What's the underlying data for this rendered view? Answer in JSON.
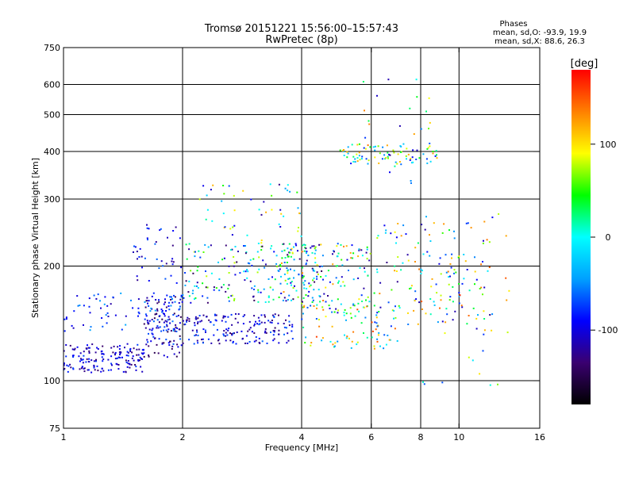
{
  "chart_data": {
    "type": "scatter",
    "title": "Tromsø 20151221 15:56:00–15:57:43",
    "subtitle": "RwPretec (8p)",
    "xlabel": "Frequency [MHz]",
    "ylabel": "Stationary phase Virtual Height [km]",
    "xscale": "log",
    "yscale": "log",
    "xlim": [
      1,
      16
    ],
    "ylim": [
      75,
      750
    ],
    "xticks": [
      1,
      2,
      4,
      6,
      8,
      10,
      16
    ],
    "yticks": [
      75,
      100,
      200,
      300,
      400,
      500,
      600,
      750
    ],
    "xgrid": [
      2,
      4,
      6,
      8,
      10
    ],
    "ygrid": [
      100,
      200,
      300,
      400,
      500,
      600
    ],
    "grid": true,
    "phase_info": {
      "title": "Phases",
      "line1": "mean, sd,O: -93.9, 19.9",
      "line2": "mean, sd,X: 88.6, 26.3"
    },
    "colorbar": {
      "label": "[deg]",
      "ticks": [
        100,
        0,
        -100
      ],
      "range": [
        -180,
        180
      ],
      "colors": [
        "#000000",
        "#3a0070",
        "#0000ff",
        "#00a0ff",
        "#00ffff",
        "#00ff00",
        "#ffff00",
        "#ff8000",
        "#ff0000"
      ]
    },
    "clusters": [
      {
        "f": [
          1.0,
          1.6
        ],
        "h": [
          105,
          125
        ],
        "n": 160,
        "phase": [
          -140,
          -70
        ]
      },
      {
        "f": [
          1.0,
          2.0
        ],
        "h": [
          135,
          170
        ],
        "n": 80,
        "phase": [
          -120,
          -40
        ]
      },
      {
        "f": [
          1.6,
          2.0
        ],
        "h": [
          115,
          170
        ],
        "n": 120,
        "phase": [
          -150,
          -60
        ]
      },
      {
        "f": [
          1.5,
          2.0
        ],
        "h": [
          180,
          260
        ],
        "n": 40,
        "phase": [
          -130,
          -60
        ]
      },
      {
        "f": [
          2.0,
          3.8
        ],
        "h": [
          125,
          150
        ],
        "n": 170,
        "phase": [
          -140,
          -60
        ]
      },
      {
        "f": [
          2.0,
          4.5
        ],
        "h": [
          160,
          230
        ],
        "n": 200,
        "phase": [
          -150,
          80
        ]
      },
      {
        "f": [
          2.2,
          4.0
        ],
        "h": [
          230,
          330
        ],
        "n": 50,
        "phase": [
          -130,
          120
        ]
      },
      {
        "f": [
          3.5,
          6.0
        ],
        "h": [
          150,
          230
        ],
        "n": 150,
        "phase": [
          -130,
          140
        ]
      },
      {
        "f": [
          4.0,
          7.0
        ],
        "h": [
          120,
          160
        ],
        "n": 80,
        "phase": [
          -80,
          160
        ]
      },
      {
        "f": [
          5.0,
          9.0
        ],
        "h": [
          370,
          420
        ],
        "n": 80,
        "phase": [
          -110,
          130
        ]
      },
      {
        "f": [
          5.5,
          8.5
        ],
        "h": [
          330,
          620
        ],
        "n": 30,
        "phase": [
          -130,
          140
        ]
      },
      {
        "f": [
          6.0,
          12.0
        ],
        "h": [
          140,
          260
        ],
        "n": 140,
        "phase": [
          -130,
          150
        ]
      },
      {
        "f": [
          8.0,
          13.5
        ],
        "h": [
          95,
          290
        ],
        "n": 40,
        "phase": [
          -110,
          170
        ]
      }
    ]
  }
}
